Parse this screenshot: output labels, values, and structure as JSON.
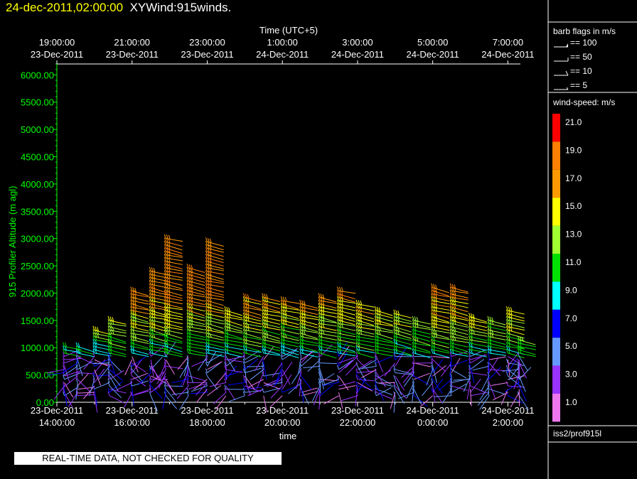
{
  "header": {
    "datetime": "24-dec-2011,02:00:00",
    "product": "XYWind:915winds."
  },
  "footer_note": "REAL-TIME DATA, NOT CHECKED FOR QUALITY",
  "colors": {
    "background": "#000000",
    "axis_green": "#00ff00",
    "title_yellow": "#ffff00"
  },
  "chart_data": {
    "type": "scatter",
    "mark": "wind-barbs",
    "title": "",
    "xlabel": "time",
    "top_axis_label": "Time (UTC+5)",
    "ylabel": "915 Profiler Altitude (m agl)",
    "ylim": [
      0,
      6200
    ],
    "xlim_hours_utc": [
      "23-Dec-2011 14:00:00",
      "24-Dec-2011 02:20:00"
    ],
    "grid": false,
    "y_ticks": [
      "0.00",
      "500.00",
      "1000.00",
      "1500.00",
      "2000.00",
      "2500.00",
      "3000.00",
      "3500.00",
      "4000.00",
      "4500.00",
      "5000.00",
      "5500.00",
      "6000.00"
    ],
    "bottom_ticks": [
      {
        "date": "23-Dec-2011",
        "time": "14:00:00"
      },
      {
        "date": "23-Dec-2011",
        "time": "16:00:00"
      },
      {
        "date": "23-Dec-2011",
        "time": "18:00:00"
      },
      {
        "date": "23-Dec-2011",
        "time": "20:00:00"
      },
      {
        "date": "23-Dec-2011",
        "time": "22:00:00"
      },
      {
        "date": "24-Dec-2011",
        "time": "0:00:00"
      },
      {
        "date": "24-Dec-2011",
        "time": "2:00:00"
      }
    ],
    "top_ticks": [
      {
        "time": "19:00:00",
        "date": "23-Dec-2011"
      },
      {
        "time": "21:00:00",
        "date": "23-Dec-2011"
      },
      {
        "time": "23:00:00",
        "date": "23-Dec-2011"
      },
      {
        "time": "1:00:00",
        "date": "24-Dec-2011"
      },
      {
        "time": "3:00:00",
        "date": "24-Dec-2011"
      },
      {
        "time": "5:00:00",
        "date": "24-Dec-2011"
      },
      {
        "time": "7:00:00",
        "date": "24-Dec-2011"
      }
    ],
    "legend_barbs": {
      "title": "barb flags in m/s",
      "items": [
        "== 100",
        "== 50",
        "== 10",
        "== 5"
      ]
    },
    "legend_colorbar": {
      "title": "wind-speed: m/s",
      "labels": [
        "21.0",
        "19.0",
        "17.0",
        "15.0",
        "13.0",
        "11.0",
        "9.0",
        "7.0",
        "5.0",
        "3.0",
        "1.0"
      ],
      "colors": [
        "#ff0000",
        "#ff8000",
        "#ff9900",
        "#ffff00",
        "#a0ff30",
        "#00e000",
        "#00ffff",
        "#0000ff",
        "#6699ff",
        "#9933ff",
        "#ee77ee"
      ]
    },
    "station": "iss2/prof915l",
    "profile_times_hours_since_14utc": [
      0.2,
      0.55,
      1.0,
      1.4,
      2.0,
      2.5,
      2.9,
      3.5,
      4.0,
      4.5,
      5.0,
      5.5,
      6.0,
      6.5,
      7.0,
      7.5,
      8.0,
      8.5,
      9.0,
      9.5,
      10.0,
      10.5,
      11.0,
      11.5,
      12.0,
      12.3
    ],
    "profile_tops_m": [
      1050,
      1050,
      1350,
      1500,
      2050,
      2450,
      3000,
      2500,
      2950,
      1700,
      1950,
      1950,
      1900,
      1850,
      1950,
      2050,
      1850,
      1700,
      1650,
      1550,
      2150,
      2100,
      1600,
      1550,
      1700,
      1150
    ],
    "max_speed_height_m": 2000,
    "speed_near_surface_ms": 3,
    "speed_aloft_ms": 18
  }
}
